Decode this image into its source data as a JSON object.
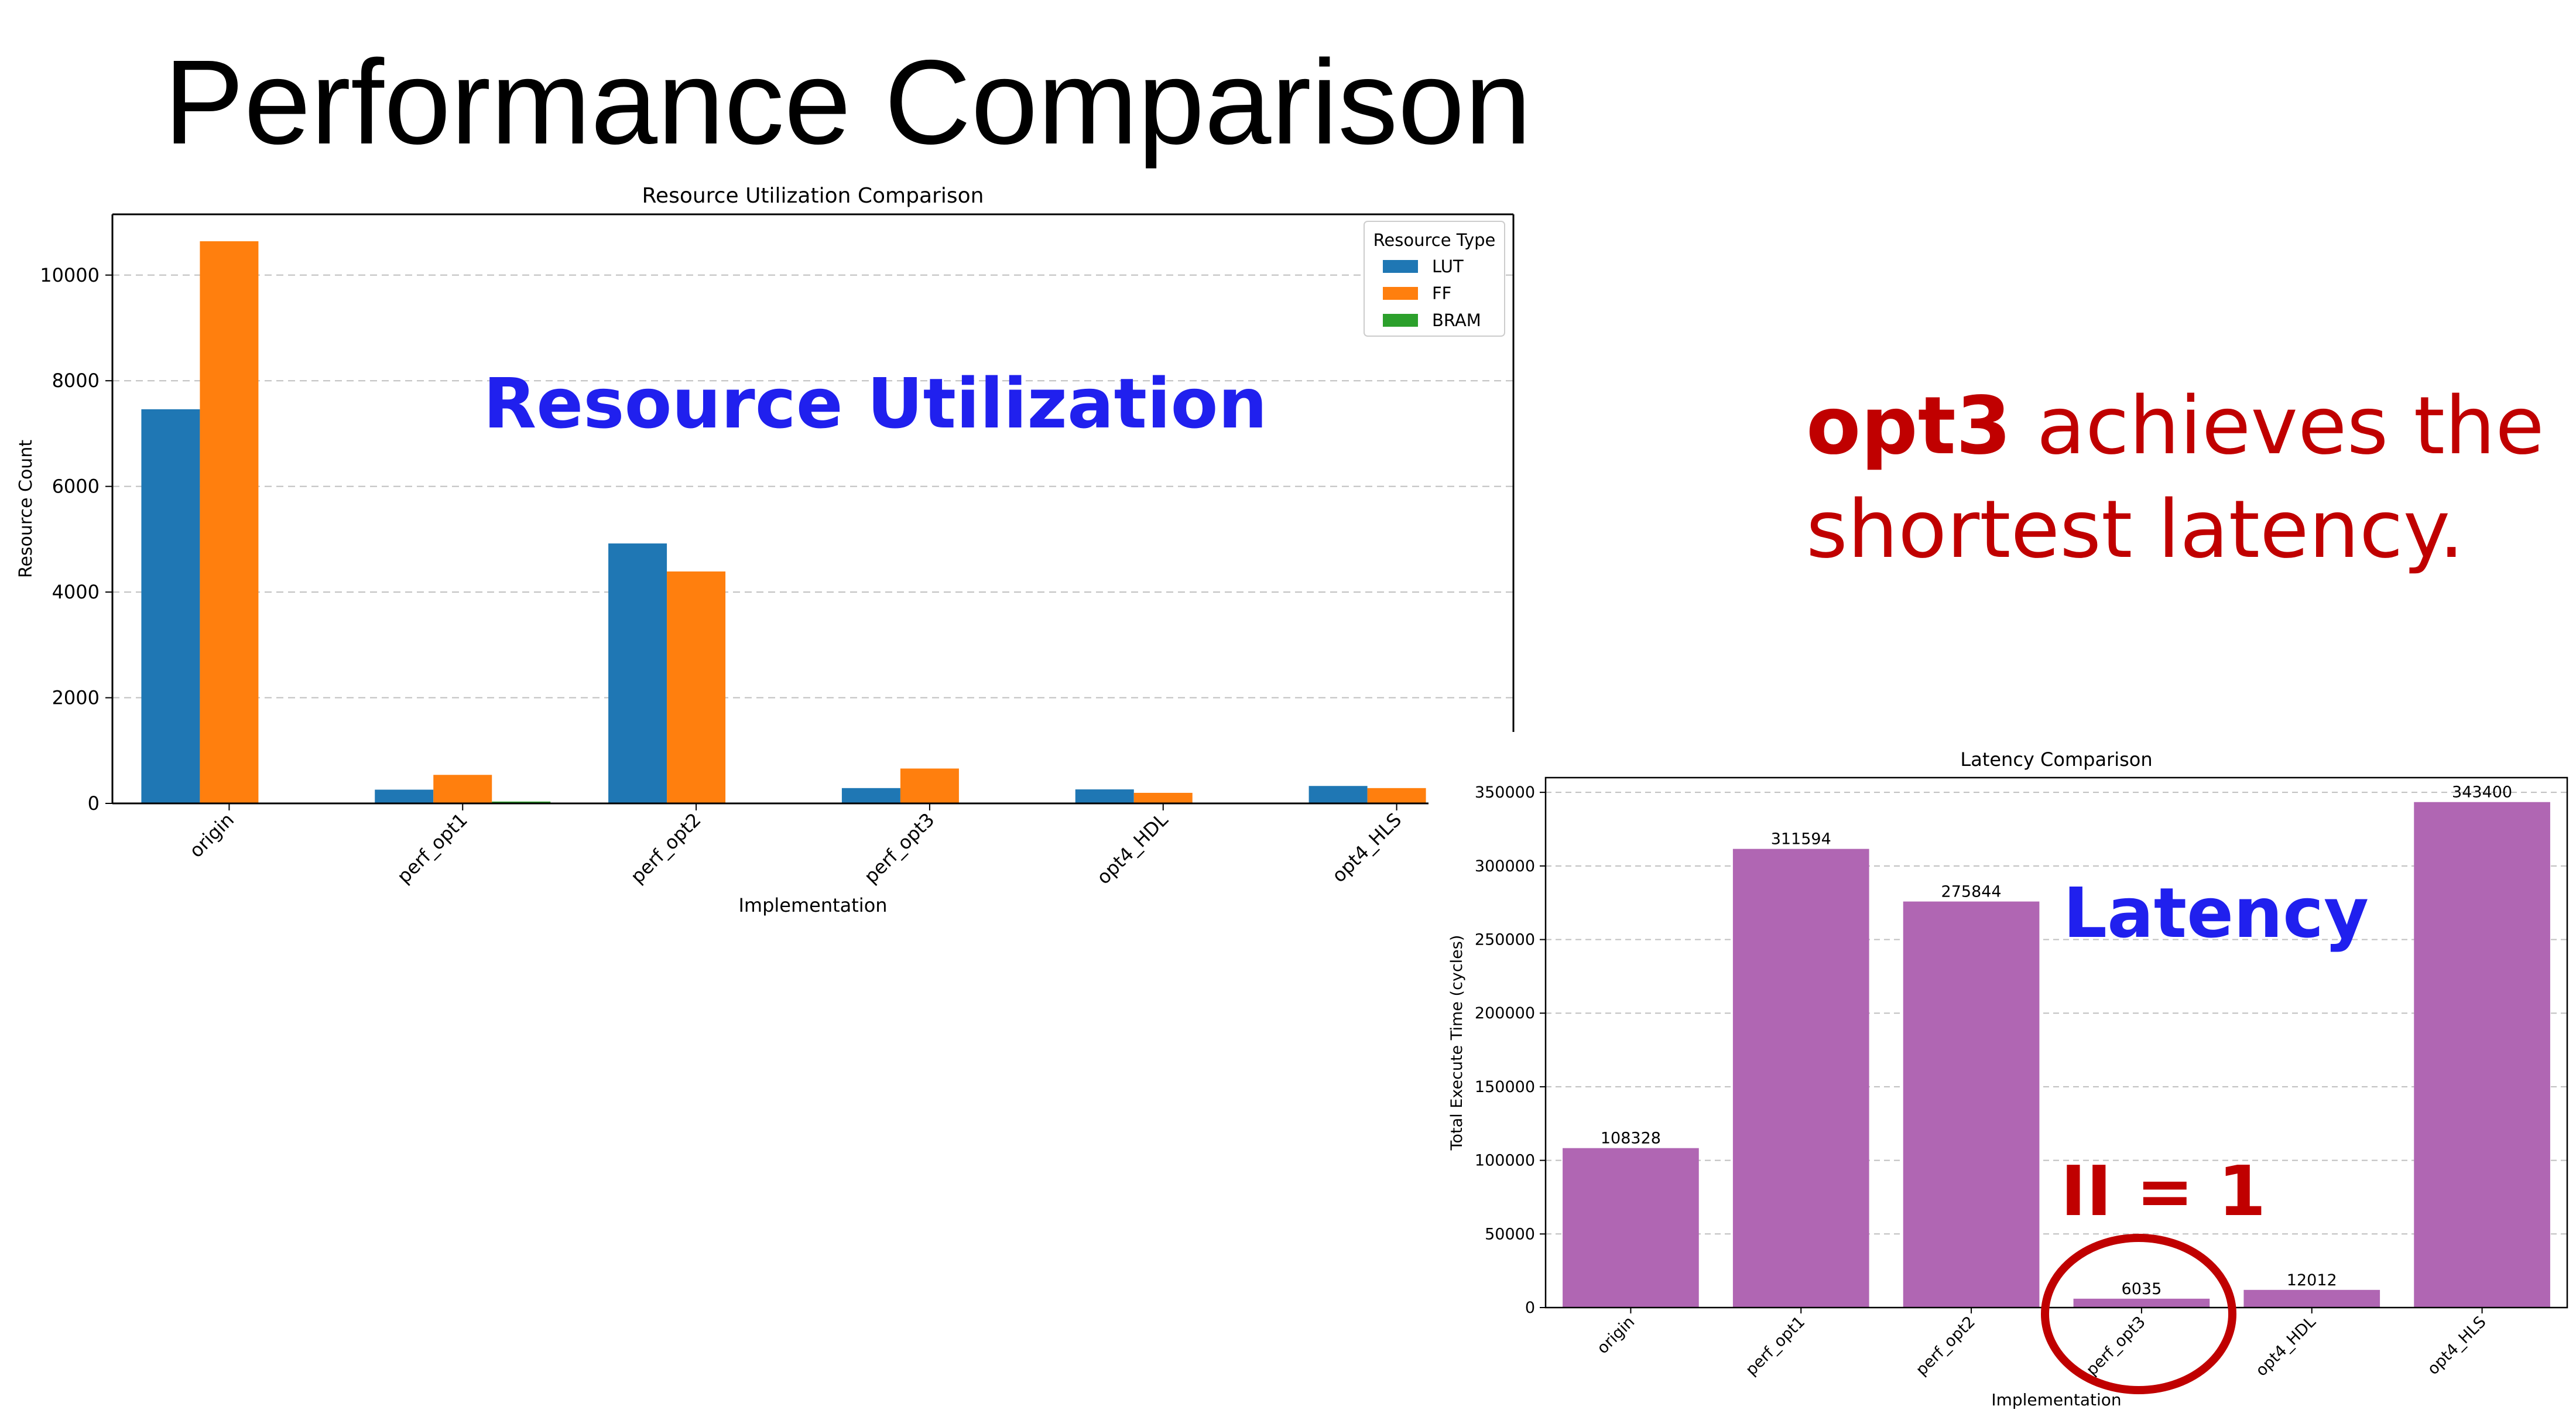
{
  "slide": {
    "title": "Performance Comparison",
    "claim_bold": "opt3",
    "claim_rest": " achieves the shortest latency.",
    "resource_overlay": "Resource Utilization",
    "latency_overlay": "Latency",
    "ii_annotation": "II = 1"
  },
  "chart_data": [
    {
      "type": "bar",
      "title": "Resource Utilization Comparison",
      "xlabel": "Implementation",
      "ylabel": "Resource Count",
      "categories": [
        "origin",
        "perf_opt1",
        "perf_opt2",
        "perf_opt3",
        "opt4_HDL",
        "opt4_HLS"
      ],
      "series": [
        {
          "name": "LUT",
          "color": "#1f77b4",
          "values": [
            7460,
            260,
            4920,
            290,
            265,
            330
          ]
        },
        {
          "name": "FF",
          "color": "#ff7f0e",
          "values": [
            10640,
            540,
            4390,
            660,
            200,
            290
          ]
        },
        {
          "name": "BRAM",
          "color": "#2ca02c",
          "values": [
            0,
            35,
            0,
            0,
            0,
            0
          ]
        }
      ],
      "ylim": [
        0,
        11150
      ],
      "yticks": [
        0,
        2000,
        4000,
        6000,
        8000,
        10000
      ],
      "ytick_labels": [
        "0",
        "2000",
        "4000",
        "6000",
        "8000",
        "10000"
      ],
      "legend_title": "Resource Type",
      "legend_position": "top-right",
      "grid": "y-dashed"
    },
    {
      "type": "bar",
      "title": "Latency Comparison",
      "xlabel": "Implementation",
      "ylabel": "Total Execute Time (cycles)",
      "categories": [
        "origin",
        "perf_opt1",
        "perf_opt2",
        "perf_opt3",
        "opt4_HDL",
        "opt4_HLS"
      ],
      "values": [
        108328,
        311594,
        275844,
        6035,
        12012,
        343400
      ],
      "value_labels": [
        "108328",
        "311594",
        "275844",
        "6035",
        "12012",
        "343400"
      ],
      "color": "#b066b3",
      "ylim": [
        0,
        360000
      ],
      "yticks": [
        0,
        50000,
        100000,
        150000,
        200000,
        250000,
        300000,
        350000
      ],
      "ytick_labels": [
        "0",
        "50000",
        "100000",
        "150000",
        "200000",
        "250000",
        "300000",
        "350000"
      ],
      "grid": "y-dashed"
    }
  ]
}
